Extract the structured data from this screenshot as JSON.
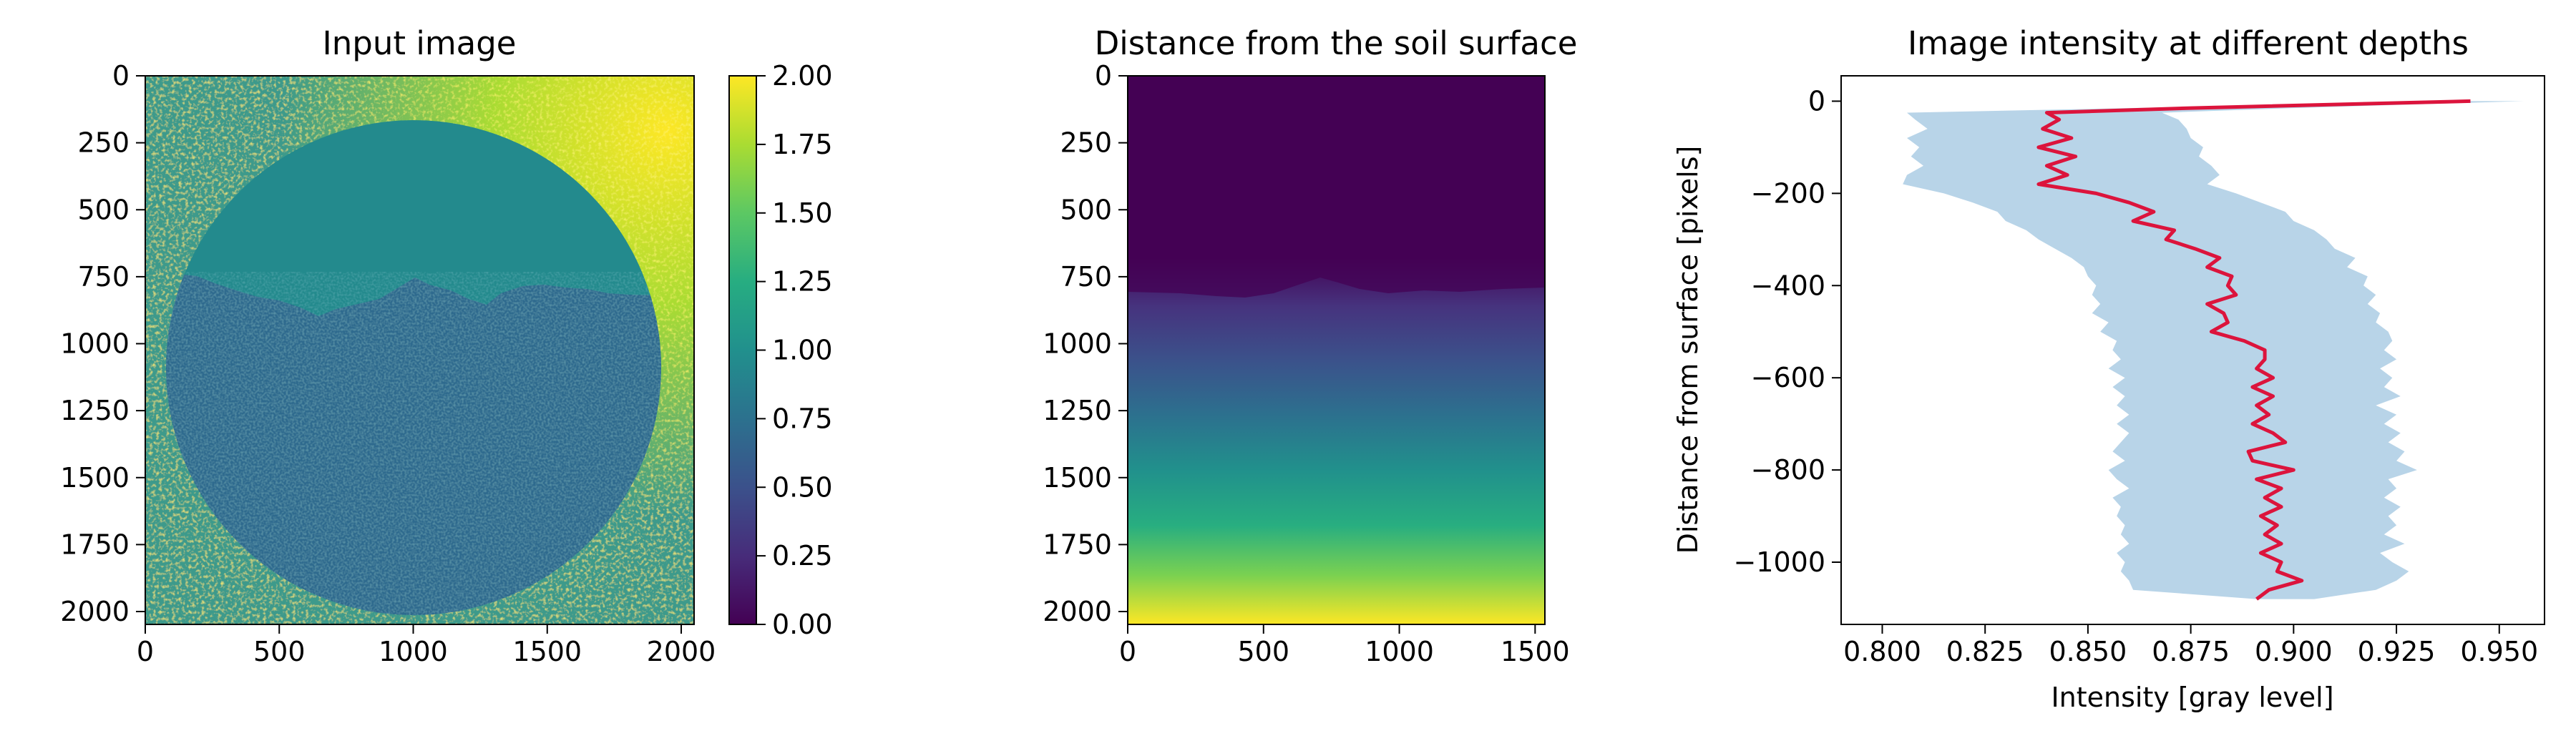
{
  "chart_data": [
    {
      "type": "heatmap",
      "title": "Input image",
      "xlabel": "",
      "ylabel": "",
      "xlim": [
        0,
        2048
      ],
      "ylim": [
        2048,
        0
      ],
      "xticks": [
        0,
        500,
        1000,
        1500,
        2000
      ],
      "yticks": [
        0,
        250,
        500,
        750,
        1000,
        1250,
        1500,
        1750,
        2000
      ],
      "colormap": "viridis",
      "colorbar": {
        "range": [
          0,
          2
        ],
        "ticks": [
          "0.00",
          "0.25",
          "0.50",
          "0.75",
          "1.00",
          "1.25",
          "1.50",
          "1.75",
          "2.00"
        ]
      },
      "image_description": "Noisy speckled field with a large circular sample (center ~ (1000, 1090), radius ~ 920); upper region of the circle ~1.0, lower soil region ~0.75, background noisy 0.5-2.0"
    },
    {
      "type": "heatmap",
      "title": "Distance from the soil surface",
      "xlabel": "",
      "ylabel": "",
      "xlim": [
        0,
        1536
      ],
      "ylim": [
        2048,
        0
      ],
      "xticks": [
        0,
        500,
        1000,
        1500
      ],
      "yticks": [
        0,
        250,
        500,
        750,
        1000,
        1250,
        1500,
        1750,
        2000
      ],
      "colormap": "viridis",
      "image_description": "Zero above the wavy soil surface (~ y 800), increasing linearly with depth to maximum at the bottom"
    },
    {
      "type": "line",
      "title": "Image intensity at different depths",
      "xlabel": "Intensity [gray level]",
      "ylabel": "Distance from surface [pixels]",
      "xlim": [
        0.79,
        0.961
      ],
      "ylim": [
        -1135,
        55
      ],
      "xticks": [
        "0.800",
        "0.825",
        "0.850",
        "0.875",
        "0.900",
        "0.925",
        "0.950"
      ],
      "yticks": [
        "0",
        "−200",
        "−400",
        "−600",
        "−800",
        "−1000"
      ],
      "series": [
        {
          "name": "mean intensity",
          "color": "#dc143c",
          "y": [
            0,
            -15,
            -25,
            -40,
            -60,
            -80,
            -100,
            -120,
            -140,
            -160,
            -180,
            -200,
            -220,
            -240,
            -260,
            -280,
            -300,
            -320,
            -340,
            -360,
            -380,
            -400,
            -420,
            -440,
            -460,
            -480,
            -500,
            -520,
            -540,
            -560,
            -580,
            -600,
            -620,
            -640,
            -660,
            -680,
            -700,
            -720,
            -740,
            -760,
            -780,
            -800,
            -820,
            -840,
            -860,
            -880,
            -900,
            -920,
            -940,
            -960,
            -980,
            -1000,
            -1020,
            -1040,
            -1060,
            -1080
          ],
          "x": [
            0.943,
            0.875,
            0.84,
            0.843,
            0.839,
            0.846,
            0.838,
            0.847,
            0.84,
            0.845,
            0.838,
            0.852,
            0.86,
            0.866,
            0.861,
            0.871,
            0.869,
            0.876,
            0.882,
            0.879,
            0.885,
            0.884,
            0.886,
            0.879,
            0.883,
            0.884,
            0.88,
            0.888,
            0.893,
            0.893,
            0.891,
            0.895,
            0.89,
            0.895,
            0.891,
            0.894,
            0.89,
            0.895,
            0.898,
            0.889,
            0.89,
            0.9,
            0.891,
            0.897,
            0.893,
            0.897,
            0.892,
            0.896,
            0.893,
            0.897,
            0.892,
            0.897,
            0.896,
            0.902,
            0.894,
            0.891
          ]
        }
      ],
      "band": {
        "name": "intensity spread",
        "color": "#b8d4e8",
        "y": [
          0,
          -15,
          -25,
          -40,
          -60,
          -80,
          -100,
          -120,
          -140,
          -160,
          -180,
          -200,
          -220,
          -240,
          -260,
          -280,
          -300,
          -320,
          -340,
          -360,
          -380,
          -400,
          -420,
          -440,
          -460,
          -480,
          -500,
          -520,
          -540,
          -560,
          -580,
          -600,
          -620,
          -640,
          -660,
          -680,
          -700,
          -720,
          -740,
          -760,
          -780,
          -800,
          -820,
          -840,
          -860,
          -880,
          -900,
          -920,
          -940,
          -960,
          -980,
          -1000,
          -1020,
          -1040,
          -1060,
          -1080
        ],
        "lower": [
          0.943,
          0.86,
          0.806,
          0.808,
          0.811,
          0.806,
          0.809,
          0.807,
          0.81,
          0.806,
          0.805,
          0.815,
          0.822,
          0.828,
          0.83,
          0.835,
          0.838,
          0.842,
          0.846,
          0.849,
          0.85,
          0.852,
          0.851,
          0.853,
          0.851,
          0.855,
          0.853,
          0.857,
          0.856,
          0.858,
          0.855,
          0.859,
          0.856,
          0.859,
          0.857,
          0.86,
          0.857,
          0.86,
          0.858,
          0.856,
          0.859,
          0.855,
          0.857,
          0.86,
          0.856,
          0.858,
          0.857,
          0.859,
          0.858,
          0.86,
          0.857,
          0.859,
          0.858,
          0.86,
          0.861,
          0.891
        ],
        "upper": [
          0.956,
          0.9,
          0.868,
          0.872,
          0.874,
          0.875,
          0.878,
          0.877,
          0.88,
          0.882,
          0.879,
          0.886,
          0.892,
          0.898,
          0.9,
          0.905,
          0.908,
          0.91,
          0.915,
          0.913,
          0.918,
          0.917,
          0.92,
          0.918,
          0.921,
          0.92,
          0.923,
          0.924,
          0.922,
          0.925,
          0.921,
          0.924,
          0.922,
          0.926,
          0.92,
          0.925,
          0.922,
          0.926,
          0.923,
          0.927,
          0.925,
          0.93,
          0.923,
          0.925,
          0.922,
          0.926,
          0.923,
          0.925,
          0.922,
          0.927,
          0.921,
          0.924,
          0.928,
          0.925,
          0.92,
          0.905
        ]
      }
    }
  ]
}
